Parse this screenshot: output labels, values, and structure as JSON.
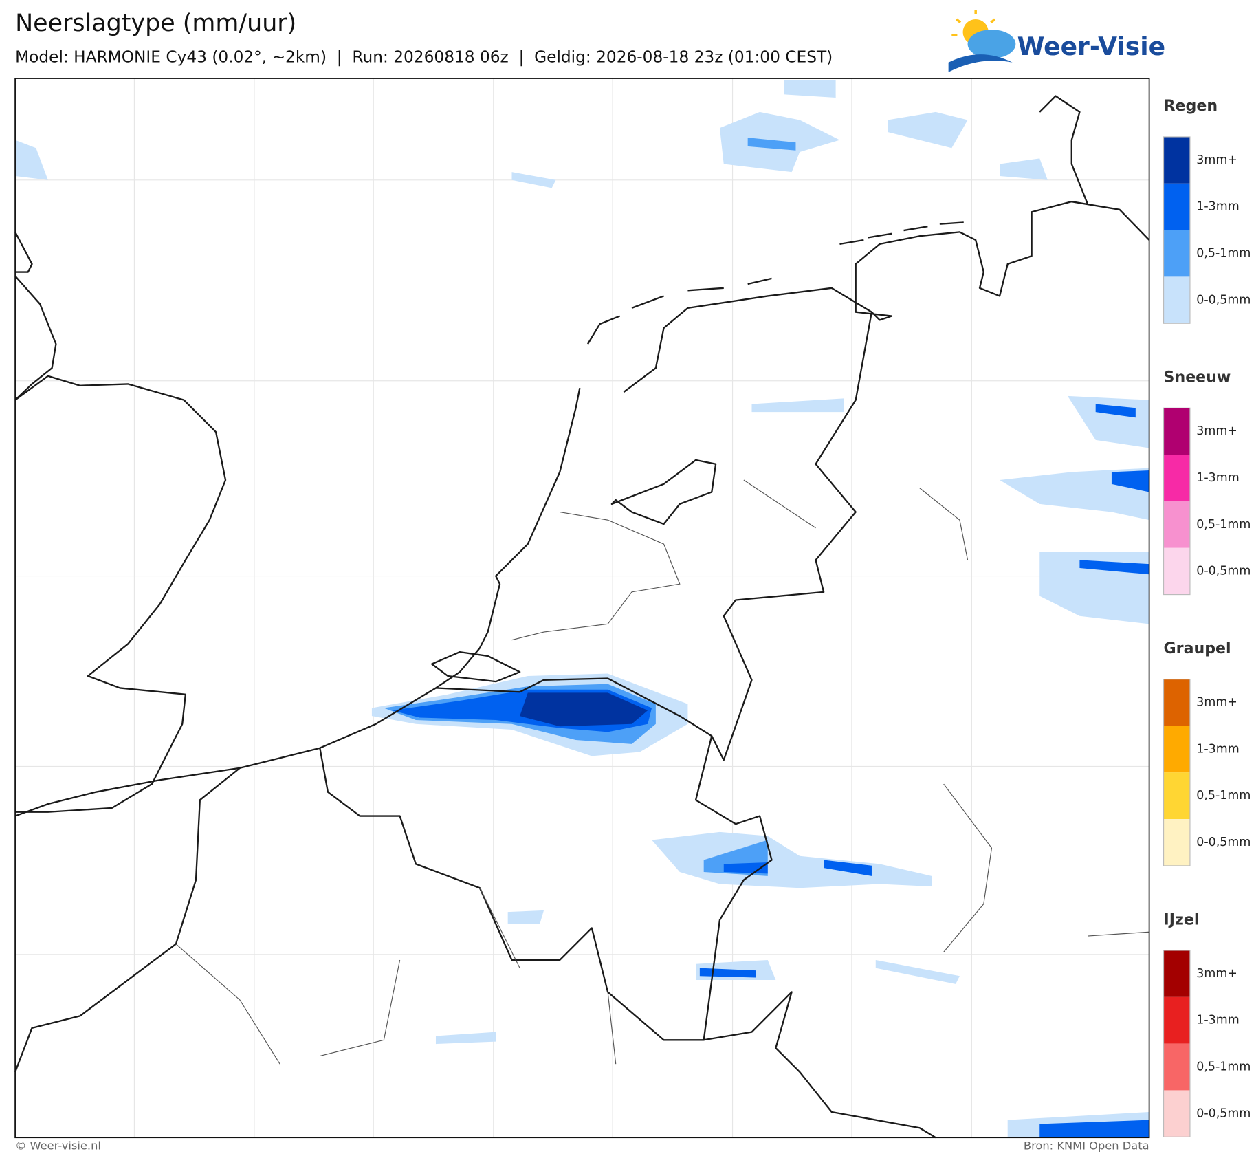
{
  "header": {
    "title": "Neerslagtype (mm/uur)",
    "subtitle": "Model: HARMONIE Cy43 (0.02°, ~2km)  |  Run: 20260818 06z  |  Geldig: 2026-08-18 23z (01:00 CEST)"
  },
  "logo": {
    "text": "Weer-Visie"
  },
  "legend": [
    {
      "title": "Regen",
      "colors": [
        "#0033a0",
        "#0061f0",
        "#4da0f7",
        "#c8e2fb"
      ],
      "labels": [
        "3mm+",
        "1-3mm",
        "0,5-1mm",
        "0-0,5mm"
      ]
    },
    {
      "title": "Sneeuw",
      "colors": [
        "#b00070",
        "#f72aa6",
        "#f791cf",
        "#fcd6ec"
      ],
      "labels": [
        "3mm+",
        "1-3mm",
        "0,5-1mm",
        "0-0,5mm"
      ]
    },
    {
      "title": "Graupel",
      "colors": [
        "#dd6300",
        "#ffaa00",
        "#ffd633",
        "#fff2c2"
      ],
      "labels": [
        "3mm+",
        "1-3mm",
        "0,5-1mm",
        "0-0,5mm"
      ]
    },
    {
      "title": "IJzel",
      "colors": [
        "#a30000",
        "#e82020",
        "#f86666",
        "#fcd0d0"
      ],
      "labels": [
        "3mm+",
        "1-3mm",
        "0,5-1mm",
        "0-0,5mm"
      ]
    }
  ],
  "footer": {
    "left": "© Weer-visie.nl",
    "right": "Bron: KNMI Open Data"
  }
}
